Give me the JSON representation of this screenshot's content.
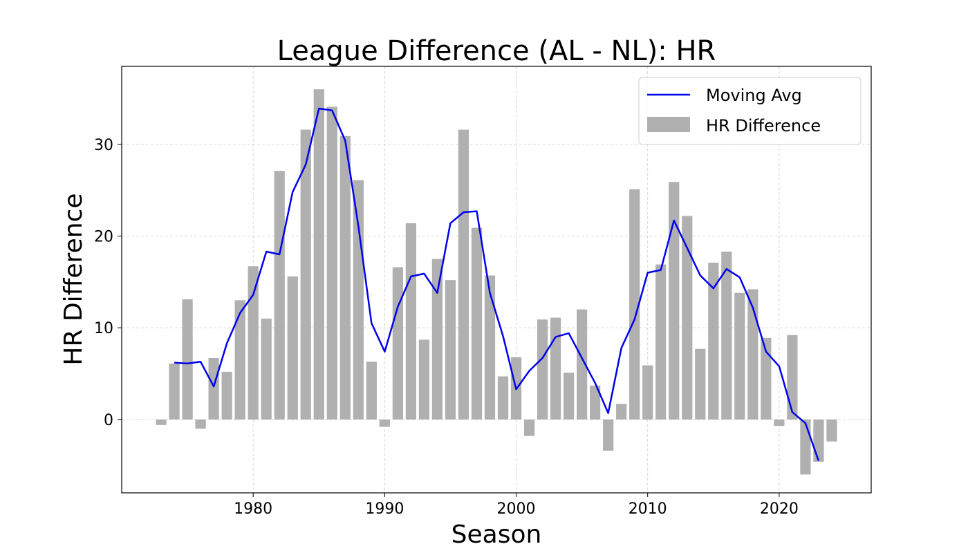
{
  "chart_data": {
    "type": "bar",
    "title": "League Difference (AL - NL): HR",
    "xlabel": "Season",
    "ylabel": "HR Difference",
    "xlim": [
      1970,
      2027
    ],
    "ylim": [
      -8,
      38.5
    ],
    "xticks": [
      1980,
      1990,
      2000,
      2010,
      2020
    ],
    "yticks": [
      0,
      10,
      20,
      30
    ],
    "grid": true,
    "legend": "top-right",
    "colors": {
      "bar": "#b0b0b0",
      "line": "#0000ee"
    },
    "series": [
      {
        "name": "HR Difference",
        "type": "bar",
        "x": [
          1973,
          1974,
          1975,
          1976,
          1977,
          1978,
          1979,
          1980,
          1981,
          1982,
          1983,
          1984,
          1985,
          1986,
          1987,
          1988,
          1989,
          1990,
          1991,
          1992,
          1993,
          1994,
          1995,
          1996,
          1997,
          1998,
          1999,
          2000,
          2001,
          2002,
          2003,
          2004,
          2005,
          2006,
          2007,
          2008,
          2009,
          2010,
          2011,
          2012,
          2013,
          2014,
          2015,
          2016,
          2017,
          2018,
          2019,
          2020,
          2021,
          2022,
          2023,
          2024
        ],
        "values": [
          -0.6,
          6.1,
          13.1,
          -1.0,
          6.7,
          5.2,
          13.0,
          16.7,
          11.0,
          27.1,
          15.6,
          31.6,
          36.0,
          34.1,
          30.9,
          26.1,
          6.3,
          -0.8,
          16.6,
          21.4,
          8.7,
          17.5,
          15.2,
          31.6,
          20.9,
          15.7,
          4.7,
          6.8,
          -1.8,
          10.9,
          11.1,
          5.1,
          12.0,
          3.7,
          -3.4,
          1.7,
          25.1,
          5.9,
          16.9,
          25.9,
          22.2,
          7.7,
          17.1,
          18.3,
          13.8,
          14.2,
          8.9,
          -0.7,
          9.2,
          -6.0,
          -4.6,
          -2.4
        ]
      },
      {
        "name": "Moving Avg",
        "type": "line",
        "x": [
          1974,
          1975,
          1976,
          1977,
          1978,
          1979,
          1980,
          1981,
          1982,
          1983,
          1984,
          1985,
          1986,
          1987,
          1988,
          1989,
          1990,
          1991,
          1992,
          1993,
          1994,
          1995,
          1996,
          1997,
          1998,
          1999,
          2000,
          2001,
          2002,
          2003,
          2004,
          2005,
          2006,
          2007,
          2008,
          2009,
          2010,
          2011,
          2012,
          2013,
          2014,
          2015,
          2016,
          2017,
          2018,
          2019,
          2020,
          2021,
          2022,
          2023
        ],
        "values": [
          6.2,
          6.1,
          6.3,
          3.6,
          8.3,
          11.6,
          13.6,
          18.3,
          18.0,
          24.8,
          27.8,
          33.9,
          33.7,
          30.4,
          21.1,
          10.5,
          7.4,
          12.3,
          15.6,
          15.9,
          13.8,
          21.4,
          22.6,
          22.7,
          13.8,
          9.1,
          3.3,
          5.3,
          6.7,
          9.0,
          9.4,
          6.7,
          4.0,
          0.7,
          7.8,
          10.9,
          16.0,
          16.3,
          21.7,
          18.7,
          15.7,
          14.3,
          16.4,
          15.5,
          12.2,
          7.4,
          5.8,
          0.8,
          -0.4,
          -4.5
        ]
      }
    ]
  }
}
